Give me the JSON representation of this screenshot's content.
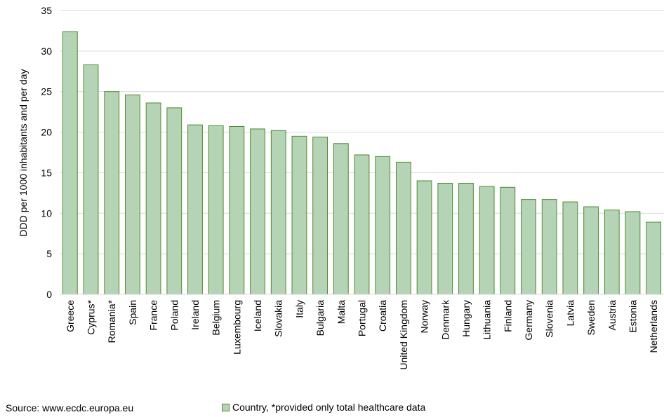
{
  "chart_data": {
    "type": "bar",
    "title": "",
    "xlabel": "",
    "ylabel": "DDD per 1000 inhabitants and per day",
    "ylim": [
      0,
      35
    ],
    "yticks": [
      0,
      5,
      10,
      15,
      20,
      25,
      30,
      35
    ],
    "grid": true,
    "legend_position": "bottom",
    "categories": [
      "Greece",
      "Cyprus*",
      "Romania*",
      "Spain",
      "France",
      "Poland",
      "Ireland",
      "Belgium",
      "Luxembourg",
      "Iceland",
      "Slovakia",
      "Italy",
      "Bulgaria",
      "Malta",
      "Portugal",
      "Croatia",
      "United Kingdom",
      "Norway",
      "Denmark",
      "Hungary",
      "Lithuania",
      "Finland",
      "Germany",
      "Slovenia",
      "Latvia",
      "Sweden",
      "Austria",
      "Estonia",
      "Netherlands"
    ],
    "series": [
      {
        "name": "Country, *provided only total healthcare data",
        "values": [
          32.4,
          28.3,
          25.0,
          24.6,
          23.6,
          23.0,
          20.9,
          20.8,
          20.7,
          20.4,
          20.2,
          19.5,
          19.4,
          18.6,
          17.2,
          17.0,
          16.3,
          14.0,
          13.7,
          13.7,
          13.3,
          13.2,
          11.7,
          11.7,
          11.4,
          10.8,
          10.4,
          10.2,
          8.9
        ],
        "color": "#b5d3b5",
        "edge_color": "#4f8a2f"
      }
    ]
  },
  "footer": {
    "source": "Source: www.ecdc.europa.eu"
  }
}
